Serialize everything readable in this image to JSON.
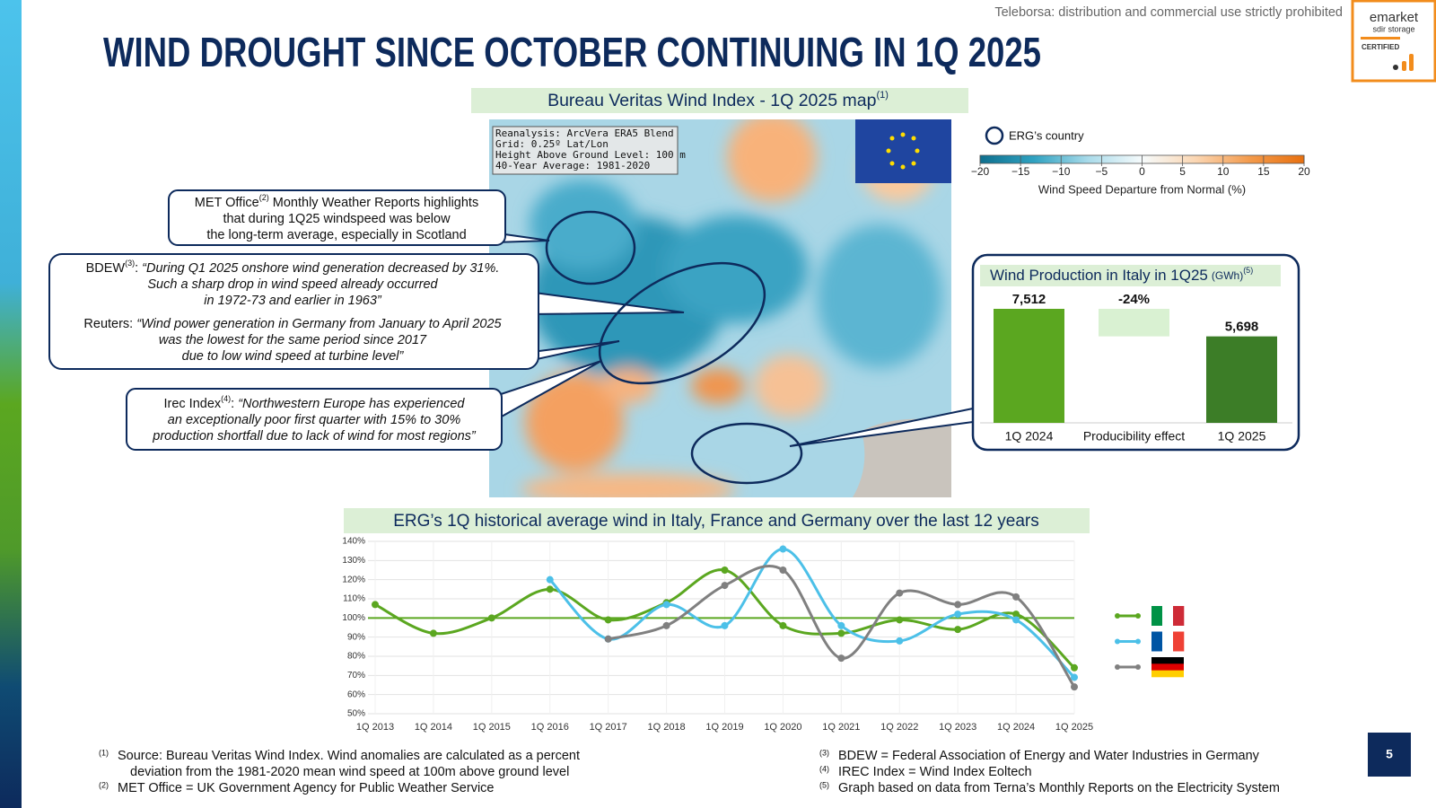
{
  "header": {
    "notice": "Teleborsa: distribution and commercial use strictly prohibited",
    "title": "WIND DROUGHT SINCE OCTOBER CONTINUING IN 1Q 2025",
    "page_number": "5",
    "logo": {
      "name": "emarket",
      "sub": "sdir storage",
      "badge": "CERTIFIED"
    }
  },
  "map": {
    "title": "Bureau Veritas Wind Index - 1Q 2025 map",
    "title_note": "(1)",
    "info": [
      "Reanalysis: ArcVera ERA5 Blend",
      "Grid: 0.25º Lat/Lon",
      "Height Above Ground Level: 100 m",
      "40-Year Average: 1981-2020"
    ],
    "legend_label": "ERG’s country",
    "colorbar": {
      "ticks": [
        {
          "value": -20,
          "label": "−20"
        },
        {
          "value": -15,
          "label": "−15"
        },
        {
          "value": -10,
          "label": "−10"
        },
        {
          "value": -5,
          "label": "−5"
        },
        0,
        5,
        10,
        15,
        20
      ],
      "label": "Wind Speed Departure from Normal (%)",
      "colors": [
        "#0e6f8e",
        "#2fa2c1",
        "#a9dbea",
        "#f6fbfc",
        "#fbd6b2",
        "#f39a4b",
        "#e8700f"
      ]
    }
  },
  "callouts": [
    {
      "lead": "MET Office",
      "note": "(2)",
      "sep": " ",
      "italic": false,
      "lines": [
        "Monthly Weather Reports highlights",
        "that during 1Q25 windspeed was below",
        "the long-term average, especially in Scotland"
      ]
    },
    {
      "lead": "BDEW",
      "note": "(3)",
      "sep": ": ",
      "italic": true,
      "lines": [
        "“During Q1 2025 onshore wind generation decreased by 31%.",
        "Such a sharp drop in wind speed already occurred",
        "in 1972-73 and earlier in 1963”"
      ]
    },
    {
      "lead": "Reuters: ",
      "italic": true,
      "lines": [
        "“Wind power generation in Germany from January to April 2025",
        "was the lowest for the same period since 2017",
        "due to low wind speed at turbine level”"
      ]
    },
    {
      "lead": "Irec Index",
      "note": "(4)",
      "sep": ":  ",
      "italic": true,
      "lines": [
        "“Northwestern Europe has experienced",
        "an exceptionally poor first quarter with 15% to 30%",
        "production shortfall due to lack of wind for most regions”"
      ]
    }
  ],
  "chart_data": [
    {
      "type": "waterfall",
      "title": "Wind Production in Italy in 1Q25",
      "title_unit": "(GWh)",
      "title_note": "(5)",
      "categories": [
        "1Q 2024",
        "Producibility effect",
        "1Q 2025"
      ],
      "kinds": [
        "total",
        "delta",
        "total"
      ],
      "values": [
        7512,
        -1814,
        5698
      ],
      "value_labels": [
        "7,512",
        null,
        "5,698"
      ],
      "delta_label": "-24%",
      "colors": [
        "#5ba720",
        "#d9f1d2",
        "#3c7d27"
      ]
    },
    {
      "type": "line",
      "title": "ERG’s 1Q historical average wind in Italy, France and Germany  over the last 12 years",
      "categories": [
        "1Q 2013",
        "1Q 2014",
        "1Q 2015",
        "1Q 2016",
        "1Q 2017",
        "1Q 2018",
        "1Q 2019",
        "1Q 2020",
        "1Q 2021",
        "1Q 2022",
        "1Q 2023",
        "1Q 2024",
        "1Q 2025"
      ],
      "series": [
        {
          "color": "#5ba720",
          "flag": [
            "#009246",
            "#ffffff",
            "#ce2b37"
          ],
          "values": [
            107,
            92,
            100,
            115,
            99,
            108,
            125,
            96,
            92,
            99,
            94,
            102,
            74
          ]
        },
        {
          "color": "#4cc0e8",
          "flag": [
            "#0055a4",
            "#ffffff",
            "#ef4135"
          ],
          "values": [
            null,
            null,
            null,
            120,
            89,
            107,
            96,
            136,
            96,
            88,
            102,
            99,
            69
          ]
        },
        {
          "color": "#808080",
          "flag": [
            "#000000",
            "#dd0000",
            "#ffce00"
          ],
          "values": [
            null,
            null,
            null,
            null,
            89,
            96,
            117,
            125,
            79,
            113,
            107,
            111,
            64
          ]
        }
      ],
      "ylim": [
        50,
        140
      ],
      "yticks": [
        {
          "value": 50,
          "label": "50%"
        },
        {
          "value": 60,
          "label": "60%"
        },
        {
          "value": 70,
          "label": "70%"
        },
        {
          "value": 80,
          "label": "80%"
        },
        {
          "value": 90,
          "label": "90%"
        },
        {
          "value": 100,
          "label": "100%"
        },
        {
          "value": 110,
          "label": "110%"
        },
        {
          "value": 120,
          "label": "120%"
        },
        {
          "value": 130,
          "label": "130%"
        },
        {
          "value": 140,
          "label": "140%"
        }
      ],
      "reference": 100,
      "reference_color": "#5ba720",
      "grid": true
    }
  ],
  "footnotes": [
    {
      "marker": "(1)",
      "lines": [
        "Source: Bureau Veritas Wind Index. Wind anomalies are calculated as a percent",
        "deviation from the 1981-2020 mean wind speed at 100m above ground level"
      ]
    },
    {
      "marker": "(2)",
      "lines": [
        "MET Office = UK Government Agency for Public Weather Service"
      ]
    },
    {
      "marker": "(3)",
      "lines": [
        "BDEW = Federal Association of Energy and Water Industries in Germany"
      ]
    },
    {
      "marker": "(4)",
      "lines": [
        "IREC Index = Wind Index Eoltech"
      ]
    },
    {
      "marker": "(5)",
      "lines": [
        "Graph based on data from Terna’s Monthly Reports on the Electricity System"
      ]
    }
  ]
}
